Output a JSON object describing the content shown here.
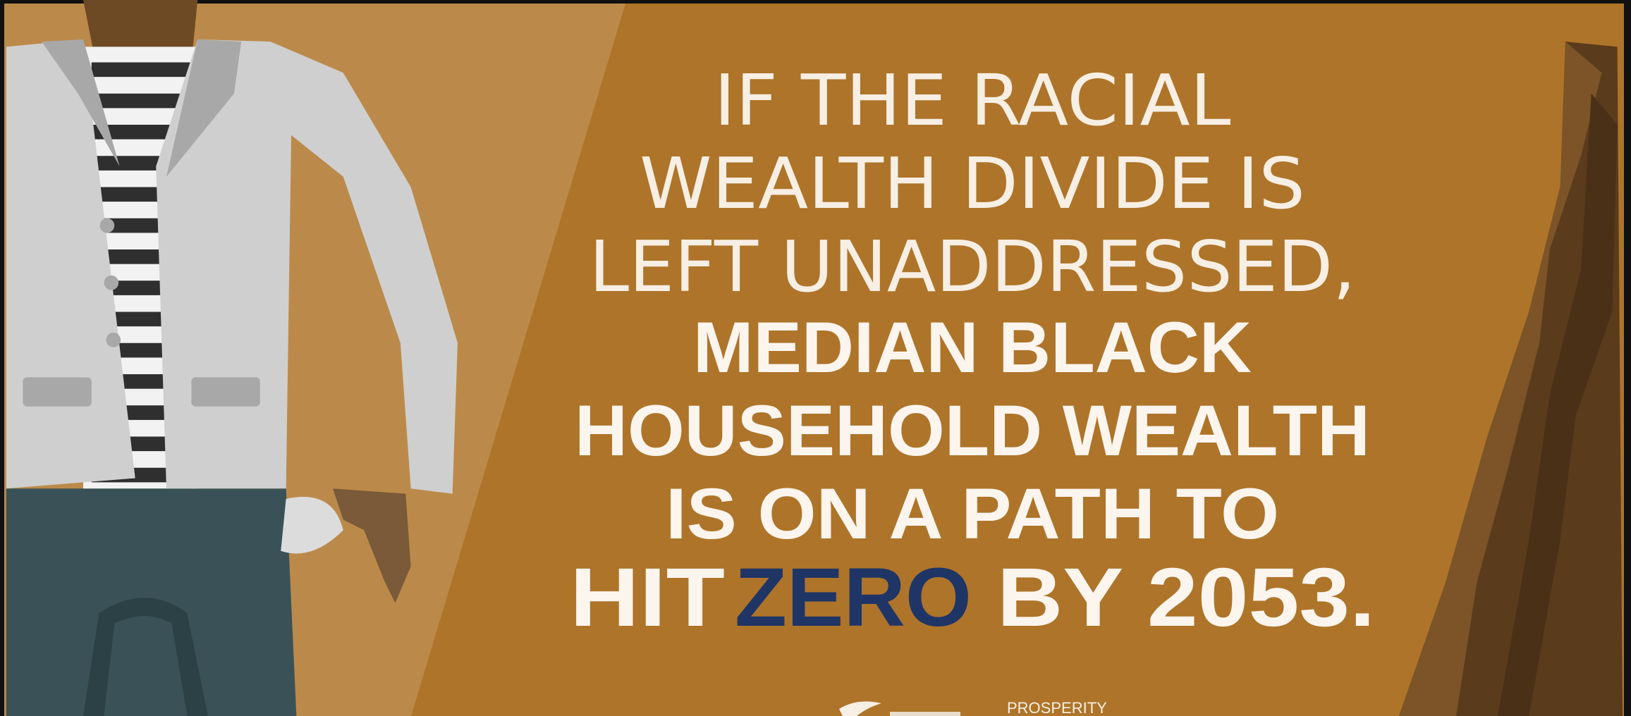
{
  "headline": {
    "lines": [
      "IF THE RACIAL",
      "WEALTH DIVIDE IS",
      "LEFT UNADDRESSED,"
    ],
    "bold_lines": [
      "MEDIAN BLACK",
      "HOUSEHOLD WEALTH",
      "IS ON A PATH TO"
    ],
    "final_line": {
      "before": "HIT",
      "highlight": "ZERO",
      "after": "BY 2053."
    }
  },
  "footer": {
    "logo_text": "PROSPERITY"
  }
}
